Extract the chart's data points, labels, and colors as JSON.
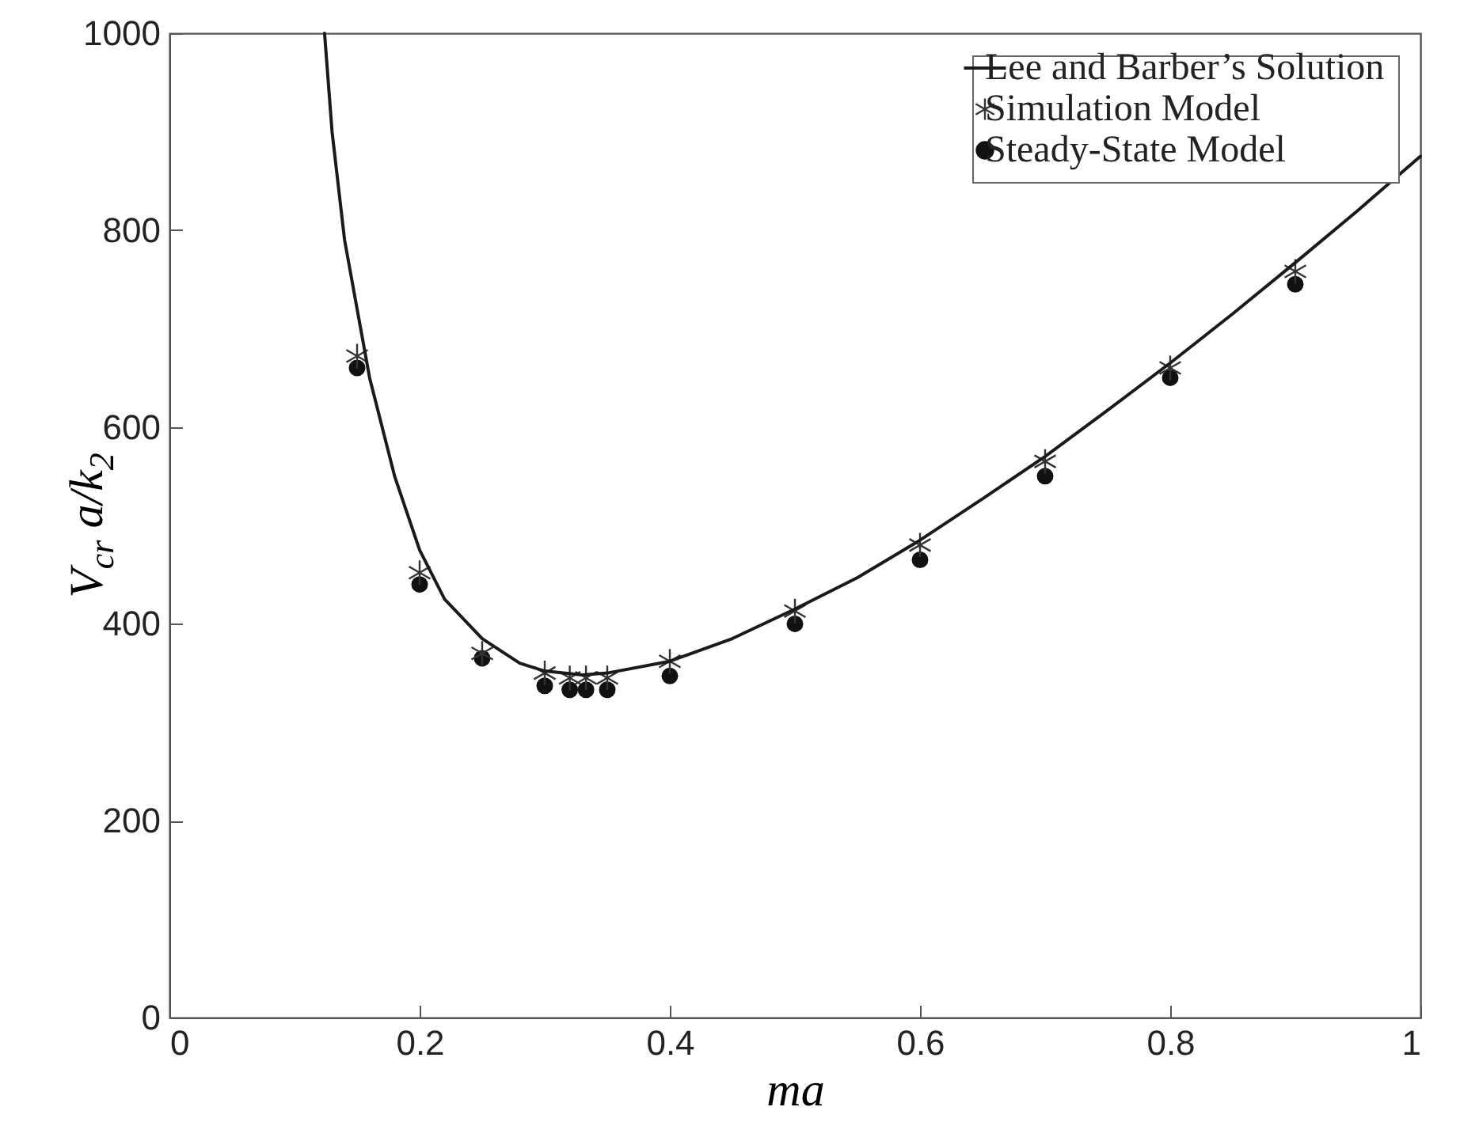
{
  "chart_data": {
    "type": "line",
    "xlabel": "ma",
    "ylabel": "V$_{cr}$ a/k$_{2}$",
    "xlim": [
      0,
      1
    ],
    "xticks": [
      0,
      0.2,
      0.4,
      0.6,
      0.8,
      1
    ],
    "ylim": [
      0,
      1000
    ],
    "yticks": [
      0,
      200,
      400,
      600,
      800,
      1000
    ],
    "grid": false,
    "legend": "top right",
    "series": [
      {
        "name": "Lee and Barber’s Solution",
        "color": "#1a1a1a",
        "line_style": "solid",
        "marker": "none",
        "x": [
          0.124,
          0.13,
          0.14,
          0.15,
          0.16,
          0.18,
          0.2,
          0.22,
          0.25,
          0.28,
          0.3,
          0.33,
          0.35,
          0.4,
          0.45,
          0.5,
          0.55,
          0.6,
          0.65,
          0.7,
          0.75,
          0.8,
          0.85,
          0.9,
          0.95,
          1.0
        ],
        "values": [
          1000,
          900,
          790,
          720,
          650,
          550,
          475,
          425,
          385,
          360,
          352,
          348,
          350,
          362,
          385,
          415,
          447,
          485,
          527,
          570,
          617,
          665,
          715,
          767,
          820,
          875
        ]
      },
      {
        "name": "Simulation Model",
        "type": "scatter",
        "color": "#333333",
        "marker": "cross",
        "x": [
          0.15,
          0.2,
          0.25,
          0.3,
          0.32,
          0.333,
          0.35,
          0.4,
          0.5,
          0.6,
          0.7,
          0.8,
          0.9
        ],
        "values": [
          672,
          452,
          370,
          350,
          345,
          345,
          345,
          362,
          413,
          480,
          565,
          660,
          758
        ]
      },
      {
        "name": "Steady-State Model",
        "type": "scatter",
        "color": "#111111",
        "marker": "circle",
        "x": [
          0.15,
          0.2,
          0.25,
          0.3,
          0.32,
          0.333,
          0.35,
          0.4,
          0.5,
          0.6,
          0.7,
          0.8,
          0.9
        ],
        "values": [
          660,
          440,
          365,
          337,
          333,
          333,
          333,
          347,
          400,
          465,
          550,
          650,
          745
        ]
      }
    ]
  }
}
